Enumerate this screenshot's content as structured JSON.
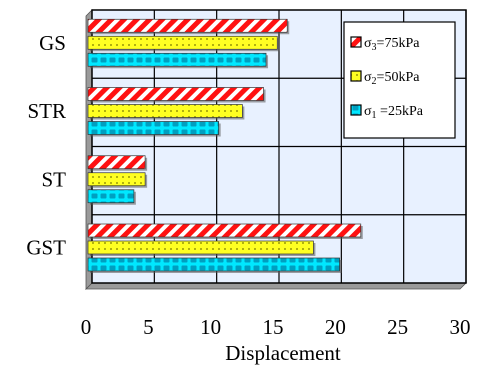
{
  "chart_data": {
    "type": "bar",
    "orientation": "horizontal",
    "categories": [
      "GS",
      "STR",
      "ST",
      "GST"
    ],
    "series": [
      {
        "name": "σ3=75kPa",
        "legend_sym": "σ",
        "legend_sub": "3",
        "legend_rest": "=75kPa",
        "values": [
          15.5,
          13.6,
          4.1,
          21.4
        ],
        "color": "#ff0000",
        "pattern": "diagonal-stripes"
      },
      {
        "name": "σ2=50kPa",
        "legend_sym": "σ",
        "legend_sub": "2",
        "legend_rest": "=50kPa",
        "values": [
          14.7,
          11.9,
          4.1,
          17.6
        ],
        "color": "#ffff00",
        "pattern": "dots"
      },
      {
        "name": "σ1 =25kPa",
        "legend_sym": "σ",
        "legend_sub": "1",
        "legend_rest": " =25kPa",
        "values": [
          13.8,
          10.0,
          3.2,
          19.7
        ],
        "color": "#00e5ff",
        "pattern": "bricks"
      }
    ],
    "xlabel": "Displacement",
    "xlim": [
      0,
      30
    ],
    "xticks": [
      "0",
      "5",
      "10",
      "15",
      "20",
      "25",
      "30"
    ],
    "grid": true,
    "legend_position": "top-right"
  }
}
